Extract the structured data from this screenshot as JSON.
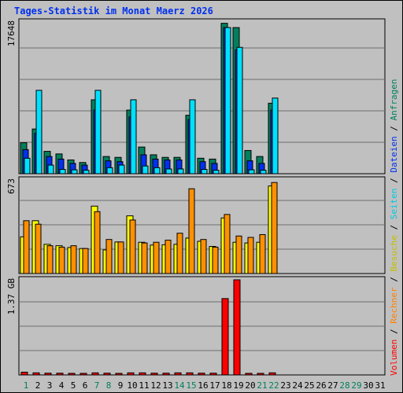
{
  "chart_data": {
    "type": "bar",
    "title": "Tages-Statistik im Monat Maerz 2026",
    "days": [
      "1",
      "2",
      "3",
      "4",
      "5",
      "6",
      "7",
      "8",
      "9",
      "10",
      "11",
      "12",
      "13",
      "14",
      "15",
      "16",
      "17",
      "18",
      "19",
      "20",
      "21",
      "22",
      "23",
      "24",
      "25",
      "26",
      "27",
      "28",
      "29",
      "30",
      "31"
    ],
    "weekend_days": [
      "1",
      "7",
      "8",
      "14",
      "15",
      "21",
      "22",
      "28",
      "29"
    ],
    "panels": [
      {
        "ymax_label": "17648",
        "ymax": 17648,
        "series": [
          {
            "name": "Anfragen",
            "color": "#00805c",
            "values": [
              3600,
              5200,
              2600,
              2300,
              1600,
              1300,
              8600,
              2000,
              1900,
              7400,
              3100,
              2200,
              1900,
              1900,
              6800,
              1800,
              1700,
              17500,
              17000,
              2700,
              2000,
              8200,
              0,
              0,
              0,
              0,
              0,
              0,
              0,
              0,
              0
            ]
          },
          {
            "name": "Dateien",
            "color": "#0030f0",
            "values": [
              2800,
              4700,
              2000,
              1700,
              1200,
              1000,
              7400,
              1500,
              1400,
              6600,
              2200,
              1700,
              1600,
              1600,
              6300,
              1400,
              1200,
              17000,
              14400,
              1500,
              1200,
              7400,
              0,
              0,
              0,
              0,
              0,
              0,
              0,
              0,
              0
            ]
          },
          {
            "name": "Seiten",
            "color": "#00e0ff",
            "values": [
              1800,
              9700,
              1000,
              500,
              450,
              400,
              9700,
              700,
              1000,
              8600,
              900,
              700,
              550,
              550,
              8600,
              500,
              400,
              17000,
              14700,
              450,
              400,
              8800,
              0,
              0,
              0,
              0,
              0,
              0,
              0,
              0,
              0
            ]
          }
        ]
      },
      {
        "ymax_label": "673",
        "ymax": 673,
        "series": [
          {
            "name": "Besuche",
            "color": "#ffff00",
            "values": [
              264,
              380,
              210,
              200,
              187,
              180,
              485,
              170,
              227,
              415,
              225,
              205,
              207,
              210,
              255,
              232,
              195,
              400,
              225,
              220,
              225,
              630,
              0,
              0,
              0,
              0,
              0,
              0,
              0,
              0,
              0
            ]
          },
          {
            "name": "Rechner",
            "color": "#ff9000",
            "values": [
              380,
              355,
              200,
              190,
              200,
              180,
              445,
              245,
              227,
              385,
              220,
              225,
              240,
              290,
              610,
              245,
              190,
              425,
              270,
              260,
              280,
              655,
              0,
              0,
              0,
              0,
              0,
              0,
              0,
              0,
              0
            ]
          }
        ]
      },
      {
        "ymax_label": "1.37 GB",
        "ymax": 1.37,
        "series": [
          {
            "name": "Volumen",
            "color": "#ff0000",
            "values": [
              0.04,
              0.03,
              0.025,
              0.025,
              0.02,
              0.02,
              0.03,
              0.025,
              0.02,
              0.03,
              0.03,
              0.025,
              0.025,
              0.03,
              0.03,
              0.025,
              0.025,
              1.1,
              1.37,
              0.02,
              0.02,
              0.03,
              0,
              0,
              0,
              0,
              0,
              0,
              0,
              0,
              0
            ]
          }
        ]
      }
    ],
    "legend": [
      {
        "text": "Volumen",
        "color": "#ff0000"
      },
      {
        "text": "Rechner",
        "color": "#ff8000"
      },
      {
        "text": "Besuche",
        "color": "#c0c000"
      },
      {
        "text": "Seiten",
        "color": "#00c8e0"
      },
      {
        "text": "Dateien",
        "color": "#0030f0"
      },
      {
        "text": "Anfragen",
        "color": "#00805c"
      }
    ],
    "legend_separator": " / ",
    "colors": {
      "background": "#c0c0c0",
      "title": "#0030f0",
      "weekend_label": "#00805c",
      "weekday_label": "#000000"
    }
  }
}
